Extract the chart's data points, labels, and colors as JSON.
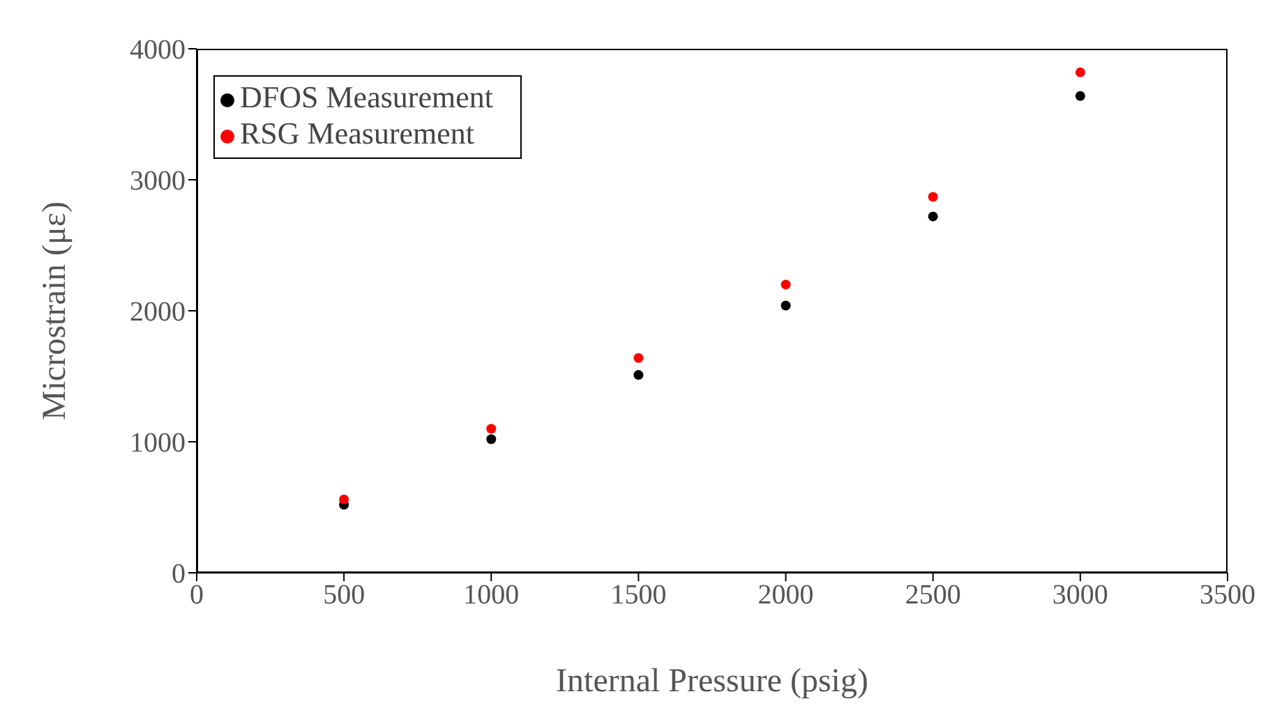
{
  "chart_data": {
    "type": "scatter",
    "xlabel": "Internal Pressure (psig)",
    "ylabel": "Microstrain (με)",
    "x": [
      500,
      1000,
      1500,
      2000,
      2500,
      3000
    ],
    "series": [
      {
        "name": "DFOS Measurement",
        "color": "#000000",
        "values": [
          520,
          1020,
          1510,
          2040,
          2720,
          3640
        ]
      },
      {
        "name": "RSG Measurement",
        "color": "#ff0000",
        "values": [
          560,
          1100,
          1640,
          2200,
          2870,
          3820
        ]
      }
    ],
    "xlim": [
      0,
      3500
    ],
    "xticks": [
      0,
      500,
      1000,
      1500,
      2000,
      2500,
      3000,
      3500
    ],
    "ylim": [
      0,
      4000
    ],
    "yticks": [
      0,
      1000,
      2000,
      3000,
      4000
    ],
    "grid": false,
    "legend": "top left",
    "marker": "circle"
  }
}
